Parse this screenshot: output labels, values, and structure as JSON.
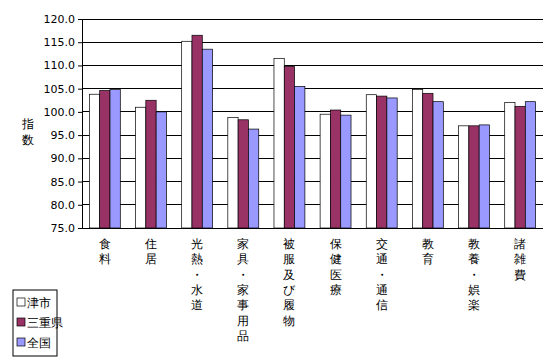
{
  "chart_data": {
    "type": "bar",
    "y_label": "指数",
    "categories": [
      "食料",
      "住居",
      "光熱・水道",
      "家具・家事用品",
      "被服及び履物",
      "保健医療",
      "交通・通信",
      "教育",
      "教養・娯楽",
      "諸雑費"
    ],
    "series": [
      {
        "name": "津市",
        "color": "#ffffff",
        "values": [
          103.8,
          101.0,
          115.2,
          98.8,
          111.5,
          99.5,
          103.7,
          104.8,
          97.0,
          102.0
        ]
      },
      {
        "name": "三重県",
        "color": "#993366",
        "values": [
          104.6,
          102.5,
          116.5,
          98.3,
          109.8,
          100.4,
          103.4,
          104.0,
          97.0,
          101.2
        ]
      },
      {
        "name": "全国",
        "color": "#9999ff",
        "values": [
          104.8,
          100.0,
          113.5,
          96.3,
          105.5,
          99.3,
          103.0,
          102.2,
          97.2,
          102.2
        ]
      }
    ],
    "ylim": [
      75,
      120
    ],
    "yticks": [
      {
        "value": 75,
        "label": "75.0"
      },
      {
        "value": 80,
        "label": "80.0"
      },
      {
        "value": 85,
        "label": "85.0"
      },
      {
        "value": 90,
        "label": "90.0"
      },
      {
        "value": 95,
        "label": "95.0"
      },
      {
        "value": 100,
        "label": "100.0"
      },
      {
        "value": 105,
        "label": "105.0"
      },
      {
        "value": 110,
        "label": "110.0"
      },
      {
        "value": 115,
        "label": "115.0"
      },
      {
        "value": 120,
        "label": "120.0"
      }
    ],
    "grid": true,
    "legend": "bottom-left"
  }
}
